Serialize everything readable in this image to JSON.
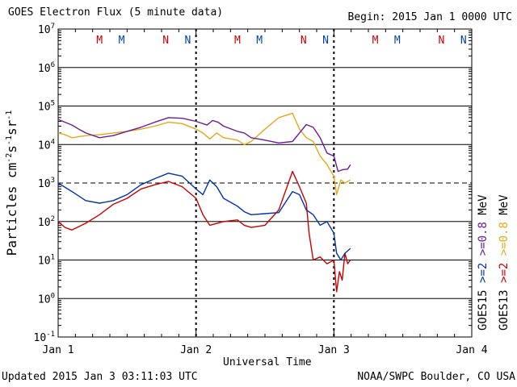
{
  "header": {
    "title": "GOES Electron Flux (5 minute data)",
    "begin": "Begin: 2015 Jan 1 0000 UTC"
  },
  "footer": {
    "updated": "Updated 2015 Jan  3 03:11:03 UTC",
    "credit": "NOAA/SWPC Boulder, CO USA"
  },
  "chart_data": {
    "type": "line",
    "title": "GOES Electron Flux (5 minute data)",
    "xlabel": "Universal Time",
    "ylabel": "Particles cm^-2 s^-1 sr^-1",
    "y_scale": "log",
    "ylim": [
      0.1,
      10000000
    ],
    "xlim": [
      0,
      3
    ],
    "x_unit": "days since 2015 Jan 1 0000 UTC",
    "x_ticks": [
      {
        "x": 0,
        "label": "Jan 1"
      },
      {
        "x": 1,
        "label": "Jan 2"
      },
      {
        "x": 2,
        "label": "Jan 3"
      },
      {
        "x": 3,
        "label": "Jan 4"
      }
    ],
    "y_ticks": [
      {
        "value": 10000000,
        "base": "10",
        "exp": "7"
      },
      {
        "value": 1000000,
        "base": "10",
        "exp": "6"
      },
      {
        "value": 100000,
        "base": "10",
        "exp": "5"
      },
      {
        "value": 10000,
        "base": "10",
        "exp": "4"
      },
      {
        "value": 1000,
        "base": "10",
        "exp": "3"
      },
      {
        "value": 100,
        "base": "10",
        "exp": "2"
      },
      {
        "value": 10,
        "base": "10",
        "exp": "1"
      },
      {
        "value": 1,
        "base": "10",
        "exp": "0"
      },
      {
        "value": 0.1,
        "base": "10",
        "exp": "-1"
      }
    ],
    "grid": true,
    "threshold": {
      "value": 1000,
      "style": "dashed"
    },
    "midnight_markers": [
      {
        "x": 1,
        "label": "Jan 2"
      },
      {
        "x": 2,
        "label": "Jan 3"
      }
    ],
    "mn_markers": [
      {
        "x": 0.3,
        "label": "M",
        "color": "#cc0000"
      },
      {
        "x": 0.46,
        "label": "M",
        "color": "#0044aa"
      },
      {
        "x": 0.78,
        "label": "N",
        "color": "#cc0000"
      },
      {
        "x": 0.94,
        "label": "N",
        "color": "#0044aa"
      },
      {
        "x": 1.3,
        "label": "M",
        "color": "#cc0000"
      },
      {
        "x": 1.46,
        "label": "M",
        "color": "#0044aa"
      },
      {
        "x": 1.78,
        "label": "N",
        "color": "#cc0000"
      },
      {
        "x": 1.94,
        "label": "N",
        "color": "#0044aa"
      },
      {
        "x": 2.3,
        "label": "M",
        "color": "#cc0000"
      },
      {
        "x": 2.46,
        "label": "M",
        "color": "#0044aa"
      },
      {
        "x": 2.78,
        "label": "N",
        "color": "#cc0000"
      },
      {
        "x": 2.94,
        "label": "N",
        "color": "#0044aa"
      }
    ],
    "series": [
      {
        "name": ">=0.8 MeV GOES15",
        "color": "#6a1b9a",
        "x": [
          0,
          0.05,
          0.1,
          0.15,
          0.2,
          0.3,
          0.4,
          0.5,
          0.6,
          0.7,
          0.8,
          0.9,
          1.0,
          1.08,
          1.12,
          1.16,
          1.2,
          1.3,
          1.35,
          1.4,
          1.5,
          1.6,
          1.7,
          1.75,
          1.8,
          1.85,
          1.9,
          1.95,
          2.0,
          2.03,
          2.06,
          2.1,
          2.12
        ],
        "values": [
          45000,
          38000,
          32000,
          25000,
          20000,
          15000,
          17000,
          22000,
          28000,
          38000,
          50000,
          48000,
          40000,
          32000,
          42000,
          38000,
          30000,
          22000,
          20000,
          15000,
          13000,
          11000,
          12000,
          20000,
          33000,
          28000,
          15000,
          6000,
          5000,
          2000,
          2200,
          2300,
          3000
        ]
      },
      {
        "name": ">=0.8 MeV GOES13",
        "color": "#e6a817",
        "x": [
          0,
          0.05,
          0.1,
          0.2,
          0.3,
          0.4,
          0.5,
          0.6,
          0.7,
          0.8,
          0.9,
          1.0,
          1.05,
          1.1,
          1.15,
          1.2,
          1.3,
          1.35,
          1.4,
          1.5,
          1.6,
          1.7,
          1.75,
          1.8,
          1.85,
          1.9,
          1.95,
          2.0,
          2.02,
          2.05,
          2.08,
          2.12
        ],
        "values": [
          20000,
          18000,
          15000,
          17000,
          18000,
          20000,
          22000,
          25000,
          30000,
          38000,
          35000,
          25000,
          20000,
          14000,
          20000,
          15000,
          13000,
          10000,
          12000,
          25000,
          50000,
          65000,
          25000,
          15000,
          12000,
          5000,
          3000,
          1500,
          500,
          1200,
          1000,
          1200
        ]
      },
      {
        "name": ">=2 MeV GOES15",
        "color": "#0033aa",
        "x": [
          0,
          0.1,
          0.2,
          0.3,
          0.4,
          0.5,
          0.6,
          0.7,
          0.8,
          0.9,
          1.0,
          1.05,
          1.1,
          1.15,
          1.2,
          1.3,
          1.35,
          1.4,
          1.5,
          1.6,
          1.7,
          1.75,
          1.8,
          1.85,
          1.9,
          1.95,
          2.0,
          2.02,
          2.05,
          2.08,
          2.12
        ],
        "values": [
          1000,
          600,
          350,
          300,
          350,
          500,
          900,
          1300,
          1800,
          1500,
          700,
          500,
          1200,
          800,
          400,
          250,
          180,
          150,
          160,
          170,
          600,
          500,
          200,
          150,
          80,
          100,
          50,
          15,
          10,
          15,
          20
        ]
      },
      {
        "name": ">=2 MeV GOES13",
        "color": "#cc0000",
        "x": [
          0,
          0.05,
          0.1,
          0.2,
          0.3,
          0.4,
          0.5,
          0.6,
          0.7,
          0.8,
          0.9,
          1.0,
          1.05,
          1.1,
          1.2,
          1.3,
          1.35,
          1.4,
          1.5,
          1.6,
          1.7,
          1.75,
          1.8,
          1.82,
          1.85,
          1.9,
          1.95,
          2.0,
          2.02,
          2.04,
          2.06,
          2.08,
          2.1,
          2.12
        ],
        "values": [
          100,
          70,
          60,
          90,
          150,
          280,
          400,
          700,
          900,
          1100,
          800,
          400,
          150,
          80,
          100,
          110,
          80,
          70,
          80,
          200,
          2000,
          800,
          300,
          50,
          10,
          12,
          8,
          10,
          1.5,
          5,
          3,
          15,
          8,
          10
        ]
      }
    ],
    "legend": {
      "position": "right",
      "groups": [
        {
          "satellite": "GOES15",
          "items": [
            {
              "label": ">=2",
              "color": "#0033aa"
            },
            {
              "label": ">=0.8",
              "color": "#6a1b9a"
            }
          ]
        },
        {
          "satellite": "GOES13",
          "items": [
            {
              "label": ">=2",
              "color": "#cc0000"
            },
            {
              "label": ">=0.8",
              "color": "#e6a817"
            }
          ]
        }
      ],
      "unit": "MeV"
    }
  }
}
